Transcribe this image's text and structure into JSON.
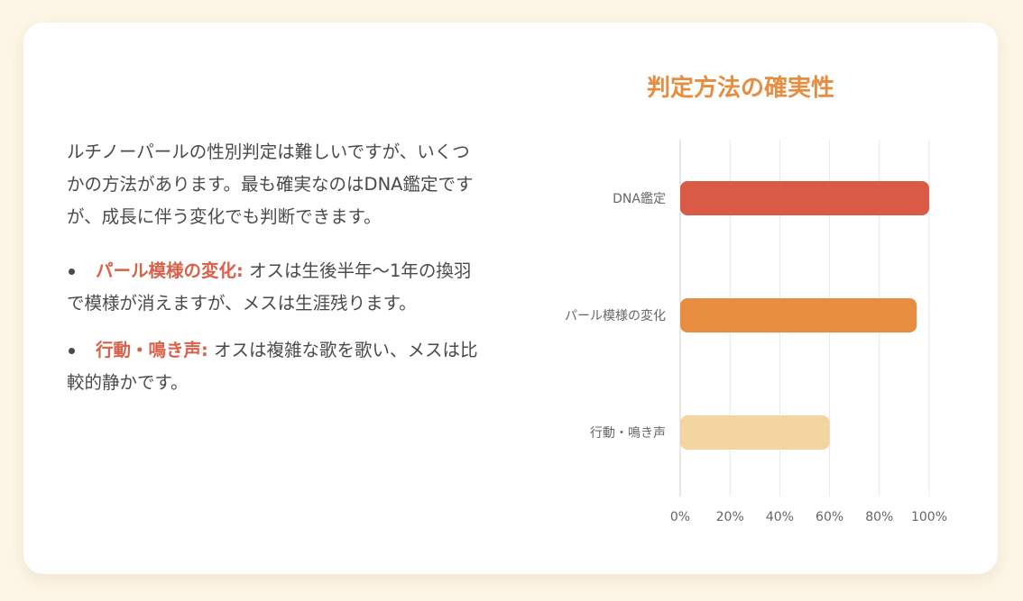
{
  "intro": "ルチノーパールの性別判定は難しいですが、いくつかの方法があります。最も確実なのはDNA鑑定ですが、成長に伴う変化でも判断できます。",
  "points": [
    {
      "term": "パール模様の変化:",
      "text": "オスは生後半年〜1年の換羽で模様が消えますが、メスは生涯残ります。"
    },
    {
      "term": "行動・鳴き声:",
      "text": "オスは複雑な歌を歌い、メスは比較的静かです。"
    }
  ],
  "chart_data": {
    "type": "bar",
    "orientation": "horizontal",
    "title": "判定方法の確実性",
    "categories": [
      "DNA鑑定",
      "パール模様の変化",
      "行動・鳴き声"
    ],
    "values": [
      100,
      95,
      60
    ],
    "colors": [
      "#d95b45",
      "#e68d40",
      "#f2d59f"
    ],
    "xlim": [
      0,
      100
    ],
    "xticks": [
      "0%",
      "20%",
      "40%",
      "60%",
      "80%",
      "100%"
    ],
    "grid": true,
    "legend": "none"
  }
}
